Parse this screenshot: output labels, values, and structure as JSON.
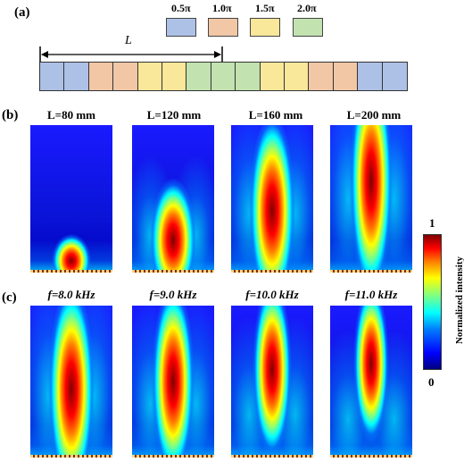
{
  "panel_a": {
    "label": "(a)",
    "legend": [
      {
        "text": "0.5π",
        "color": "#adc1e6"
      },
      {
        "text": "1.0π",
        "color": "#f1c7a6"
      },
      {
        "text": "1.5π",
        "color": "#f9e79a"
      },
      {
        "text": "2.0π",
        "color": "#c2e2b0"
      }
    ],
    "length_label": "L",
    "strip_cells": [
      "0.5π",
      "0.5π",
      "1.0π",
      "1.0π",
      "1.5π",
      "1.5π",
      "2.0π",
      "2.0π",
      "2.0π",
      "1.5π",
      "1.5π",
      "1.0π",
      "1.0π",
      "0.5π",
      "0.5π"
    ]
  },
  "panel_b": {
    "label": "(b)",
    "titles": [
      "L=80 mm",
      "L=120 mm",
      "L=160 mm",
      "L=200 mm"
    ]
  },
  "panel_c": {
    "label": "(c)",
    "titles": [
      "f=8.0 kHz",
      "f=9.0 kHz",
      "f=10.0 kHz",
      "f=11.0 kHz"
    ]
  },
  "colorbar": {
    "max_label": "1",
    "min_label": "0",
    "title": "Normalized intensity"
  }
}
